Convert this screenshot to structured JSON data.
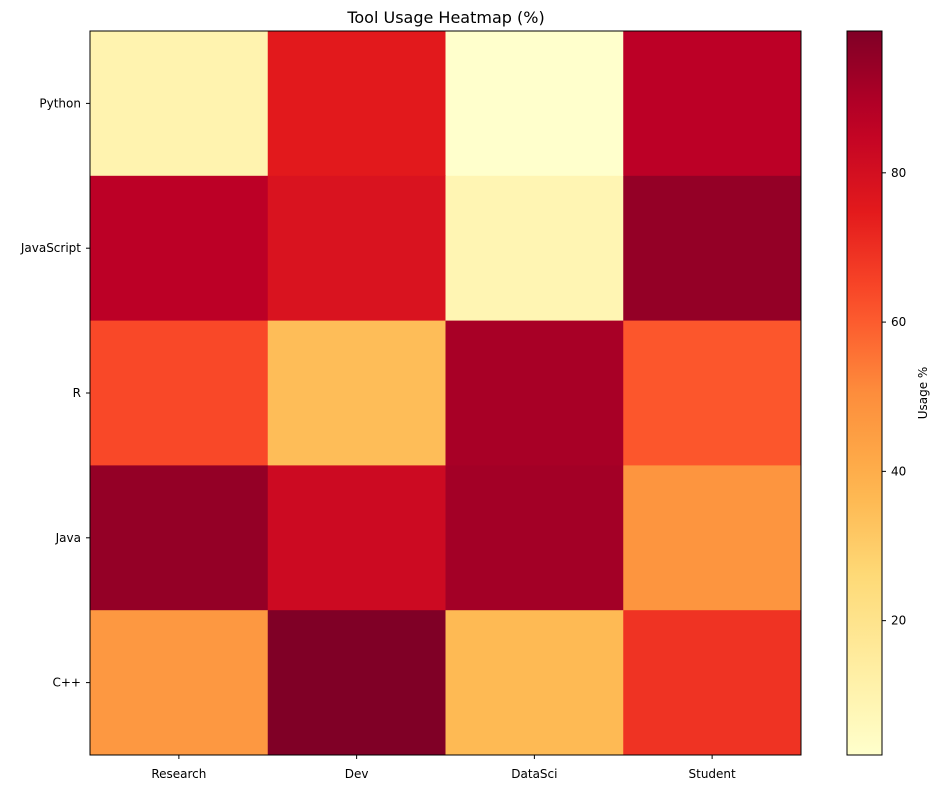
{
  "chart_data": {
    "type": "heatmap",
    "title": "Tool Usage Heatmap (%)",
    "columns": [
      "Research",
      "Dev",
      "DataSci",
      "Student"
    ],
    "rows": [
      "Python",
      "JavaScript",
      "R",
      "Java",
      "C++"
    ],
    "values": [
      [
        10,
        75,
        2,
        87
      ],
      [
        87,
        78,
        9,
        95
      ],
      [
        64,
        35,
        91,
        61
      ],
      [
        95,
        82,
        92,
        48
      ],
      [
        47,
        99,
        36,
        69
      ]
    ],
    "colorbar": {
      "label": "Usage %",
      "range": [
        2,
        99
      ],
      "ticks": [
        20,
        40,
        60,
        80
      ],
      "colormap": "YlOrRd"
    }
  }
}
